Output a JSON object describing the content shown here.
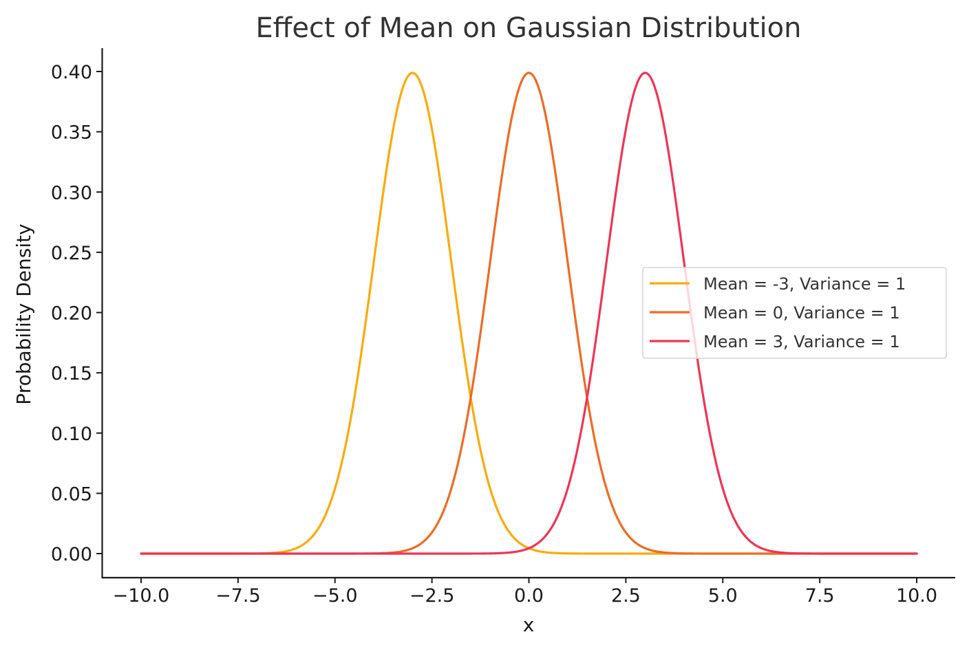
{
  "chart_data": {
    "type": "line",
    "title": "Effect of Mean on Gaussian Distribution",
    "xlabel": "x",
    "ylabel": "Probability Density",
    "xlim": [
      -10.5,
      11.0
    ],
    "ylim": [
      -0.02,
      0.42
    ],
    "x_ticks": [
      -10.0,
      -7.5,
      -5.0,
      -2.5,
      0.0,
      2.5,
      5.0,
      7.5,
      10.0
    ],
    "x_tick_labels": [
      "−10.0",
      "−7.5",
      "−5.0",
      "−2.5",
      "0.0",
      "2.5",
      "5.0",
      "7.5",
      "10.0"
    ],
    "y_ticks": [
      0.0,
      0.05,
      0.1,
      0.15,
      0.2,
      0.25,
      0.3,
      0.35,
      0.4
    ],
    "y_tick_labels": [
      "0.00",
      "0.05",
      "0.10",
      "0.15",
      "0.20",
      "0.25",
      "0.30",
      "0.35",
      "0.40"
    ],
    "x_domain": [
      -10,
      10
    ],
    "grid": false,
    "legend_position": "center-right",
    "series": [
      {
        "name": "Mean = -3, Variance = 1",
        "mean": -3,
        "variance": 1,
        "color": "#F9AA0A",
        "x": [
          -10,
          -8,
          -6,
          -5,
          -4,
          -3.5,
          -3,
          -2.5,
          -2,
          -1,
          0,
          2,
          4,
          6,
          8,
          10
        ],
        "y": [
          0.0,
          0.0,
          0.0044,
          0.054,
          0.242,
          0.352,
          0.399,
          0.352,
          0.242,
          0.054,
          0.0044,
          0.0,
          0.0,
          0.0,
          0.0,
          0.0
        ]
      },
      {
        "name": "Mean = 0, Variance = 1",
        "mean": 0,
        "variance": 1,
        "color": "#EE6A24",
        "x": [
          -10,
          -6,
          -4,
          -3,
          -2,
          -1,
          -0.5,
          0,
          0.5,
          1,
          2,
          3,
          4,
          6,
          10
        ],
        "y": [
          0.0,
          0.0,
          0.0001,
          0.0044,
          0.054,
          0.242,
          0.352,
          0.399,
          0.352,
          0.242,
          0.054,
          0.0044,
          0.0001,
          0.0,
          0.0
        ]
      },
      {
        "name": "Mean = 3, Variance = 1",
        "mean": 3,
        "variance": 1,
        "color": "#EE3455",
        "x": [
          -10,
          -4,
          -2,
          0,
          1,
          2,
          2.5,
          3,
          3.5,
          4,
          5,
          6,
          8,
          10
        ],
        "y": [
          0.0,
          0.0,
          0.0,
          0.0044,
          0.054,
          0.242,
          0.352,
          0.399,
          0.352,
          0.242,
          0.054,
          0.0044,
          0.0,
          0.0
        ]
      }
    ]
  }
}
